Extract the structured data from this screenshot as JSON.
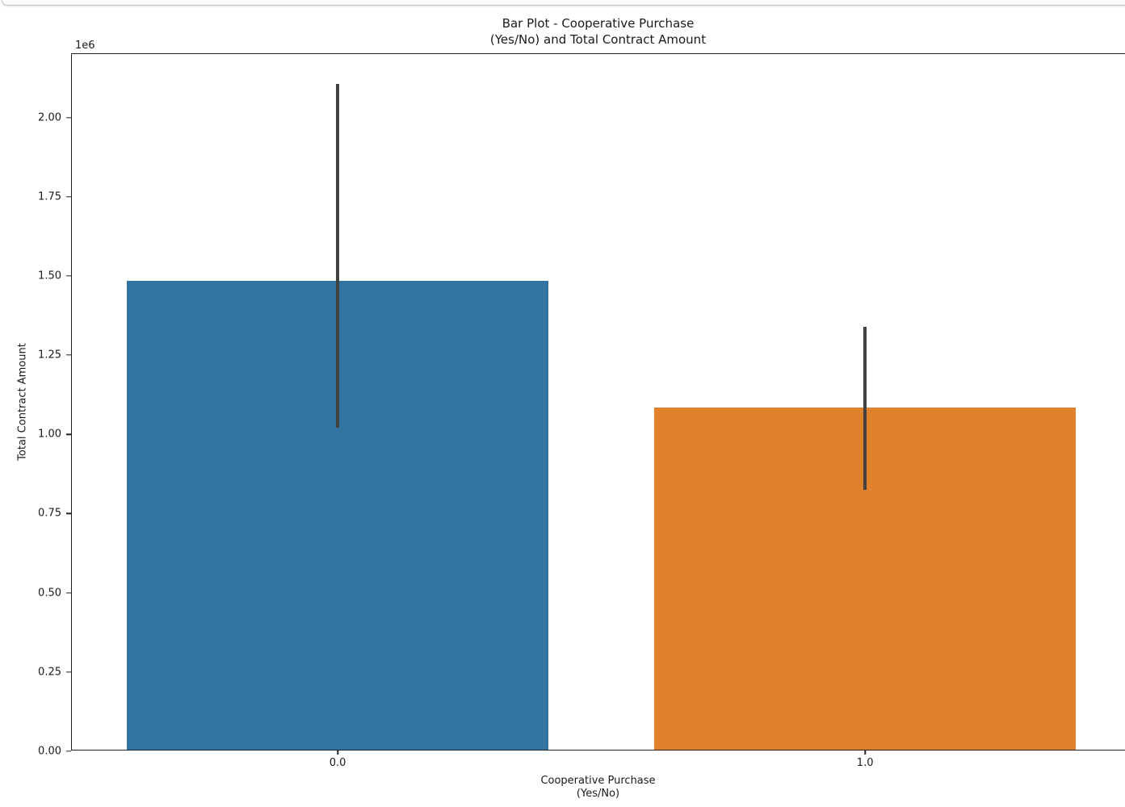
{
  "chrome": {
    "edge_border_color": "#c2c2c2"
  },
  "chart_data": {
    "type": "bar",
    "title": "Bar Plot - Cooperative Purchase\n(Yes/No) and Total Contract Amount",
    "xlabel": "Cooperative Purchase\n(Yes/No)",
    "ylabel": "Total Contract Amount",
    "y_offset_text": "1e6",
    "categories": [
      "0.0",
      "1.0"
    ],
    "values": [
      1480000,
      1080000
    ],
    "error_low": [
      1020000,
      825000
    ],
    "error_high": [
      2105000,
      1340000
    ],
    "bar_colors": [
      "#3274a1",
      "#e1812c"
    ],
    "error_bar_color": "#424242",
    "ylim": [
      0,
      2200000
    ],
    "xlim": [
      -0.504,
      1.499
    ],
    "bar_width": 0.8,
    "yticks": {
      "values": [
        0,
        250000,
        500000,
        750000,
        1000000,
        1250000,
        1500000,
        1750000,
        2000000
      ],
      "labels": [
        "0.00",
        "0.25",
        "0.50",
        "0.75",
        "1.00",
        "1.25",
        "1.50",
        "1.75",
        "2.00"
      ]
    },
    "xticks": {
      "values": [
        0,
        1
      ],
      "labels": [
        "0.0",
        "1.0"
      ]
    },
    "grid": false,
    "legend": null
  }
}
